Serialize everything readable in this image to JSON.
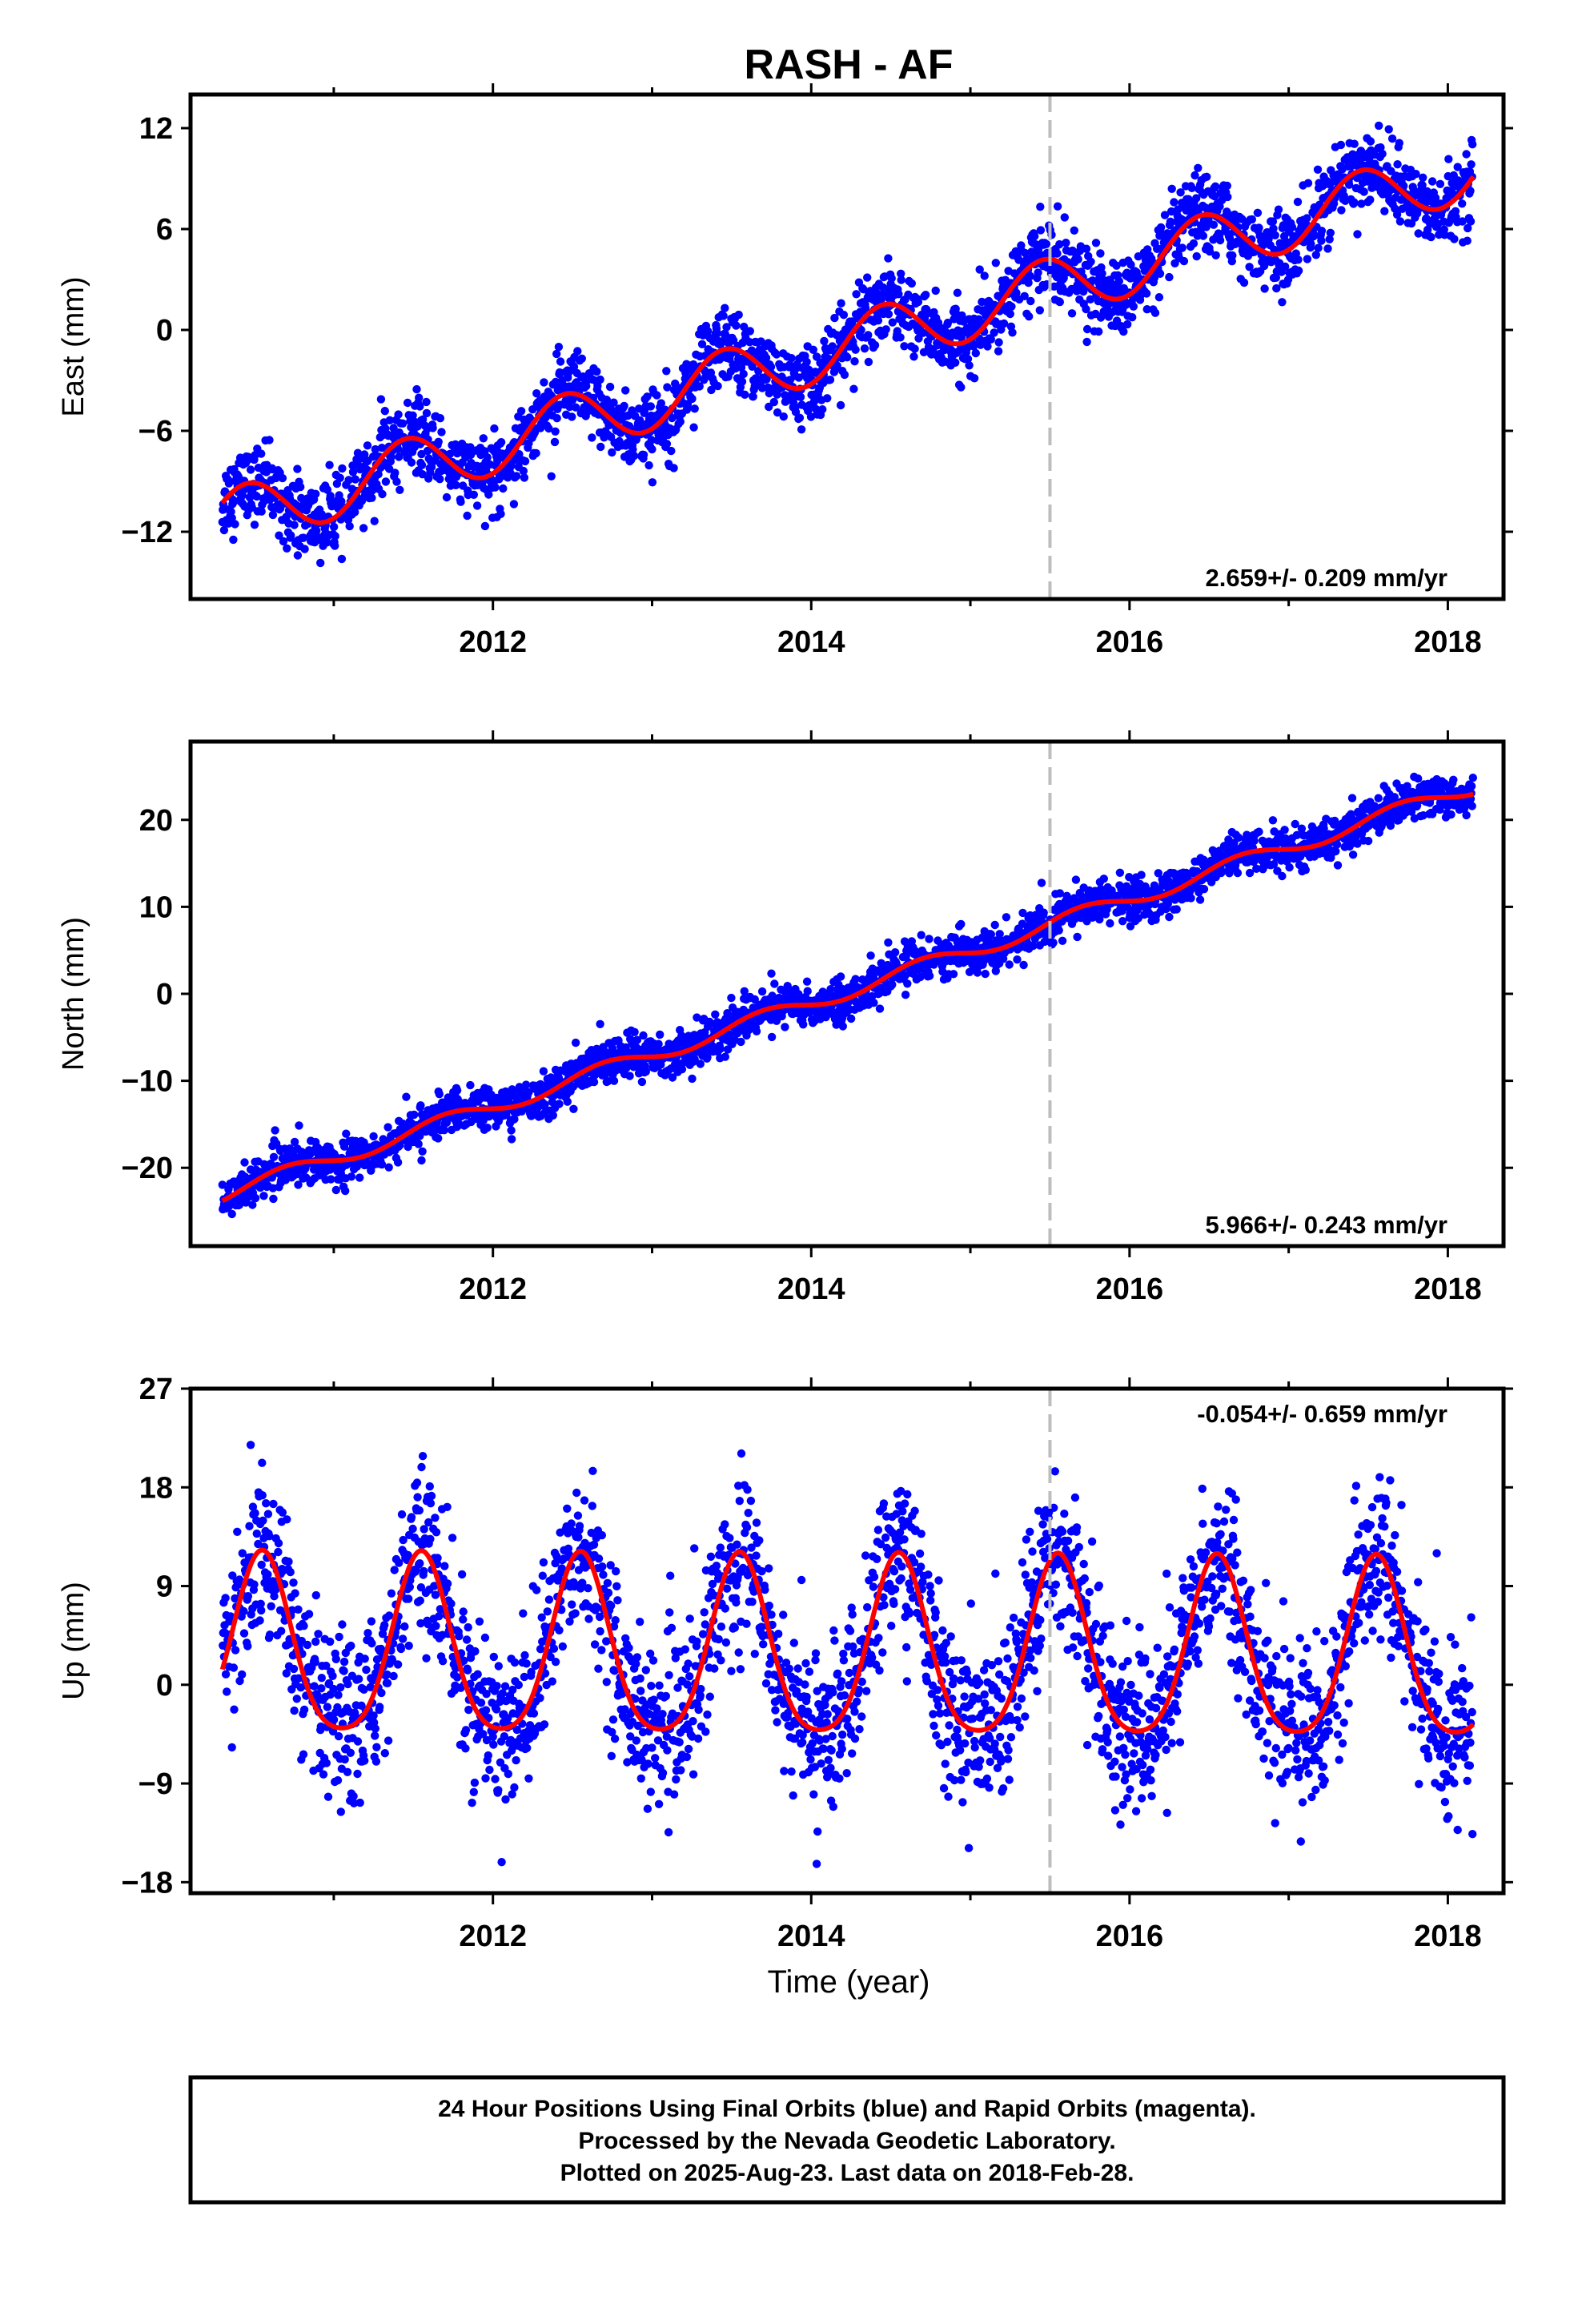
{
  "title": "RASH - AF",
  "xlabel": "Time (year)",
  "footer": {
    "line1": "24 Hour Positions Using Final Orbits (blue) and Rapid Orbits (magenta).",
    "line2": "Processed by the Nevada Geodetic Laboratory.",
    "line3": "Plotted on 2025-Aug-23. Last data on 2018-Feb-28."
  },
  "colors": {
    "points": "#0000ff",
    "model": "#ff0000",
    "event_line": "#bdbdbd",
    "frame": "#000000"
  },
  "chart_data": [
    {
      "type": "scatter",
      "ylabel": "East (mm)",
      "rate_label": "2.659+/- 0.209 mm/yr",
      "rate_position": "bottom-right",
      "xlim": [
        2010.1,
        2018.35
      ],
      "ylim": [
        -16,
        14
      ],
      "yticks": [
        -12,
        -6,
        0,
        6,
        12
      ],
      "xticks": [
        2012,
        2014,
        2016,
        2018
      ],
      "event_line_x": 2015.5,
      "model": {
        "intercept_2014": -1.5,
        "trend": 2.659,
        "annual_amp": 1.8,
        "annual_peak": 2014.45
      },
      "points_summary": {
        "start": 2010.3,
        "end": 2018.16,
        "scatter_sd": 1.1
      }
    },
    {
      "type": "scatter",
      "ylabel": "North (mm)",
      "rate_label": "5.966+/- 0.243 mm/yr",
      "rate_position": "bottom-right",
      "xlim": [
        2010.1,
        2018.35
      ],
      "ylim": [
        -29,
        29
      ],
      "yticks": [
        -20,
        -10,
        0,
        10,
        20
      ],
      "xticks": [
        2012,
        2014,
        2016,
        2018
      ],
      "event_line_x": 2015.5,
      "model": {
        "intercept_2014": -1.0,
        "trend": 5.966,
        "annual_amp": 0.9,
        "annual_peak": 2014.7
      },
      "points_summary": {
        "start": 2010.3,
        "end": 2018.16,
        "scatter_sd": 1.2
      }
    },
    {
      "type": "scatter",
      "ylabel": "Up (mm)",
      "rate_label": "-0.054+/- 0.659 mm/yr",
      "rate_position": "top-right",
      "xlim": [
        2010.1,
        2018.35
      ],
      "ylim": [
        -19,
        27
      ],
      "yticks": [
        -18,
        -9,
        0,
        9,
        18,
        27
      ],
      "xticks": [
        2012,
        2014,
        2016,
        2018
      ],
      "event_line_x": 2015.5,
      "model": {
        "intercept_2014": 2.6,
        "trend": -0.054,
        "annual_amp": 8.1,
        "annual_peak": 2014.55,
        "semiannual_amp": 1.4
      },
      "points_summary": {
        "start": 2010.3,
        "end": 2018.16,
        "scatter_sd": 3.6
      }
    }
  ]
}
